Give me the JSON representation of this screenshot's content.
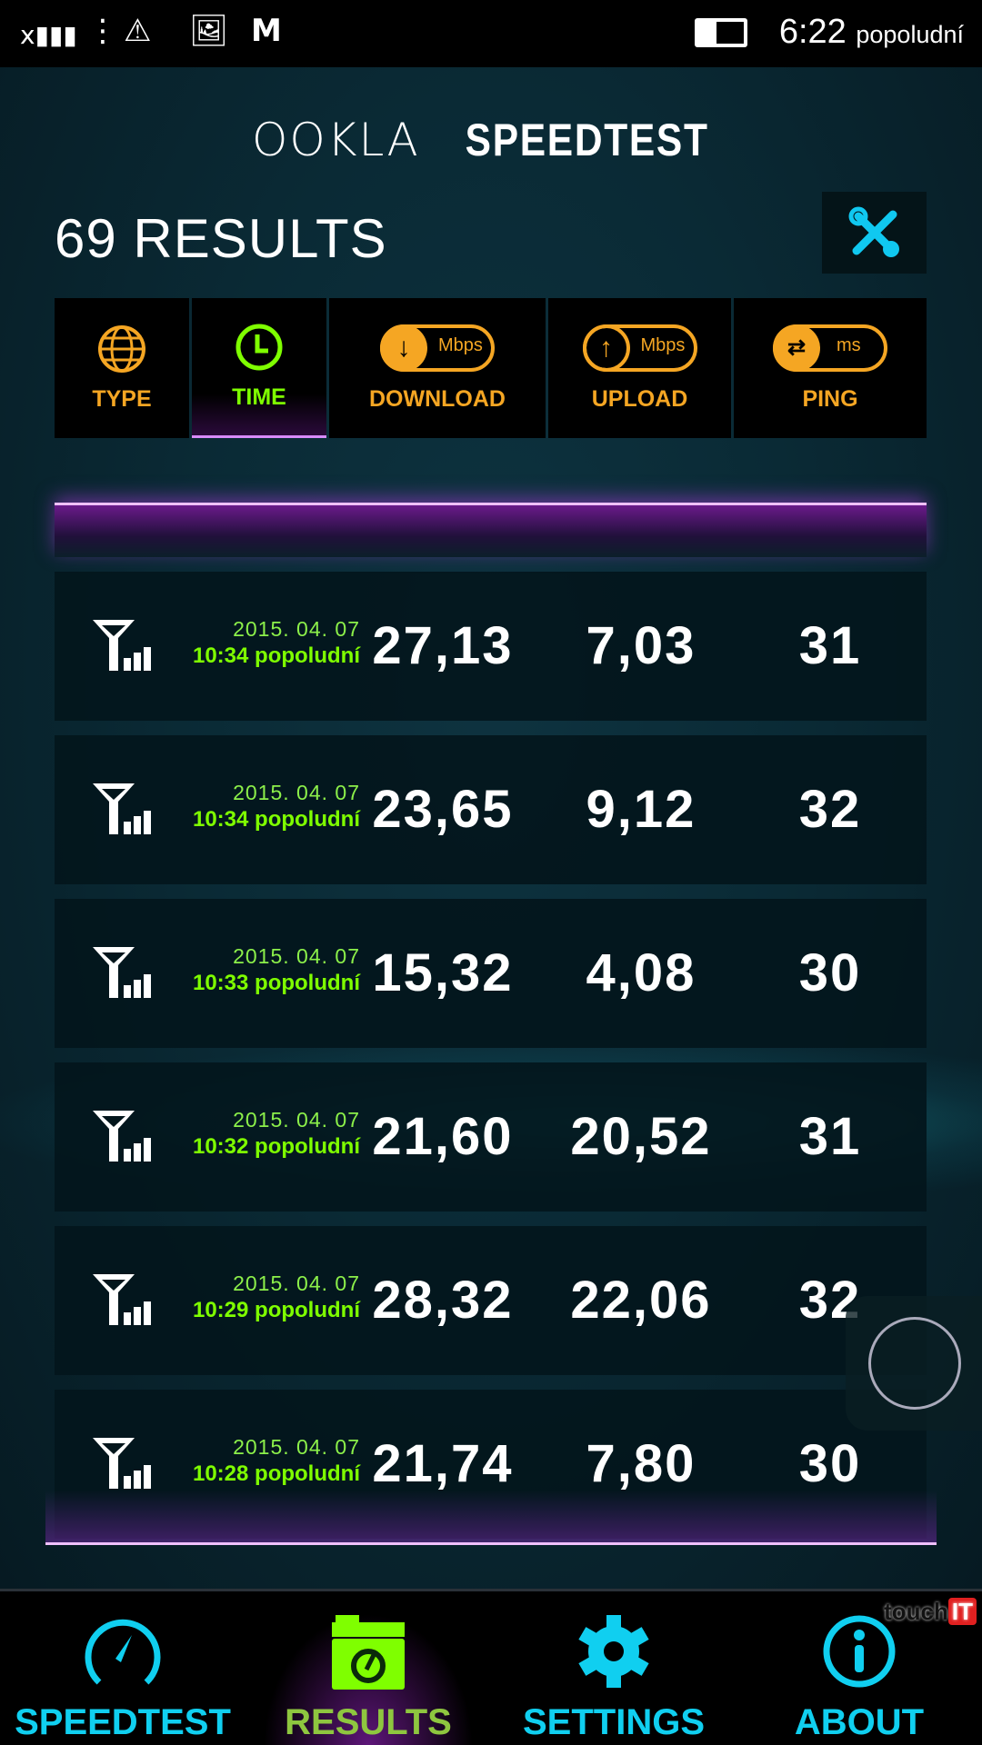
{
  "status_bar": {
    "time": "6:22",
    "ampm": "popoludní",
    "icons": [
      "signal-icon",
      "menu-dots-icon",
      "warning-icon",
      "image-icon",
      "gmail-icon",
      "battery-icon"
    ]
  },
  "logo": {
    "brand": "OOKLA",
    "product": "SPEEDTEST"
  },
  "results": {
    "count_label": "69 RESULTS"
  },
  "columns": [
    {
      "label": "TYPE",
      "icon": "globe-icon"
    },
    {
      "label": "TIME",
      "icon": "clock-icon",
      "active": true
    },
    {
      "label": "DOWNLOAD",
      "icon": "download-icon",
      "unit": "Mbps"
    },
    {
      "label": "UPLOAD",
      "icon": "upload-icon",
      "unit": "Mbps"
    },
    {
      "label": "PING",
      "icon": "ping-icon",
      "unit": "ms"
    }
  ],
  "rows": [
    {
      "date": "2015. 04. 07",
      "time": "10:34 popoludní",
      "download": "27,13",
      "upload": "7,03",
      "ping": "31"
    },
    {
      "date": "2015. 04. 07",
      "time": "10:34 popoludní",
      "download": "23,65",
      "upload": "9,12",
      "ping": "32"
    },
    {
      "date": "2015. 04. 07",
      "time": "10:33 popoludní",
      "download": "15,32",
      "upload": "4,08",
      "ping": "30"
    },
    {
      "date": "2015. 04. 07",
      "time": "10:32 popoludní",
      "download": "21,60",
      "upload": "20,52",
      "ping": "31"
    },
    {
      "date": "2015. 04. 07",
      "time": "10:29 popoludní",
      "download": "28,32",
      "upload": "22,06",
      "ping": "32"
    },
    {
      "date": "2015. 04. 07",
      "time": "10:28 popoludní",
      "download": "21,74",
      "upload": "7,80",
      "ping": "30"
    }
  ],
  "nav": [
    {
      "label": "SPEEDTEST",
      "icon": "speedometer-icon"
    },
    {
      "label": "RESULTS",
      "icon": "results-folder-icon",
      "active": true
    },
    {
      "label": "SETTINGS",
      "icon": "gear-icon"
    },
    {
      "label": "ABOUT",
      "icon": "info-icon"
    }
  ],
  "watermark": {
    "text": "touch",
    "badge": "IT"
  },
  "colors": {
    "accent_orange": "#f5a623",
    "active_green": "#7fff00",
    "nav_cyan": "#10cff0",
    "glow_purple": "#b040e0"
  }
}
